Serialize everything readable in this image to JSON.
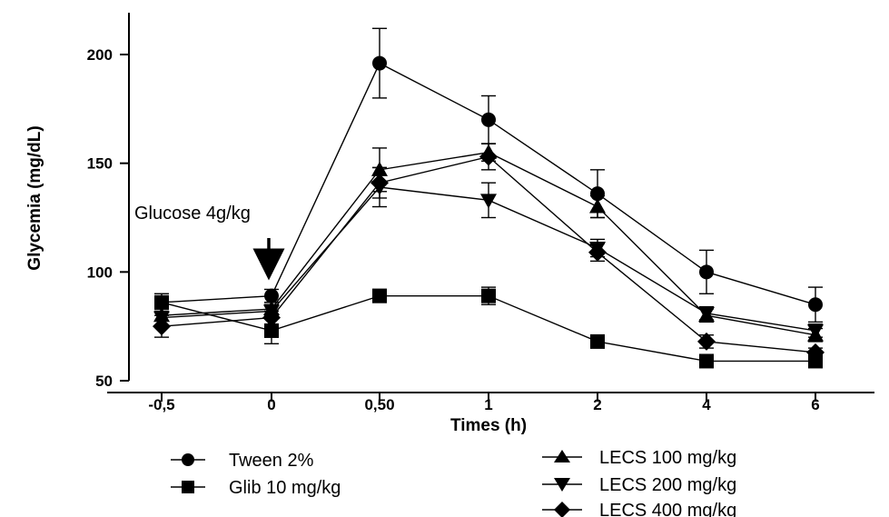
{
  "chart_data": {
    "type": "line",
    "xlabel": "Times (h)",
    "ylabel": "Glycemia (mg/dL)",
    "categories": [
      "-0,5",
      "0",
      "0,50",
      "1",
      "2",
      "4",
      "6"
    ],
    "ylim": [
      50,
      220
    ],
    "yticks": [
      50,
      100,
      150,
      200
    ],
    "grid": false,
    "legend_position": "bottom",
    "annotation": {
      "text": "Glucose 4g/kg",
      "at_category": "0"
    },
    "series": [
      {
        "name": "Tween 2%",
        "marker": "circle",
        "values": [
          86,
          89,
          196,
          170,
          136,
          100,
          85
        ],
        "errors": [
          4,
          3,
          16,
          11,
          11,
          10,
          8
        ]
      },
      {
        "name": "Glib 10 mg/kg",
        "marker": "square",
        "values": [
          86,
          73,
          89,
          89,
          68,
          59,
          59
        ],
        "errors": [
          3,
          6,
          3,
          4,
          2,
          2,
          2
        ]
      },
      {
        "name": "LECS 100 mg/kg",
        "marker": "triangle-up",
        "values": [
          80,
          83,
          147,
          155,
          130,
          80,
          71
        ],
        "errors": [
          5,
          3,
          10,
          4,
          5,
          3,
          3
        ]
      },
      {
        "name": "LECS 200 mg/kg",
        "marker": "triangle-down",
        "values": [
          79,
          82,
          139,
          133,
          111,
          81,
          73
        ],
        "errors": [
          4,
          3,
          9,
          8,
          4,
          3,
          3
        ]
      },
      {
        "name": "LECS 400 mg/kg",
        "marker": "diamond",
        "values": [
          75,
          79,
          141,
          153,
          109,
          68,
          63
        ],
        "errors": [
          5,
          3,
          7,
          6,
          4,
          3,
          2
        ]
      }
    ]
  }
}
